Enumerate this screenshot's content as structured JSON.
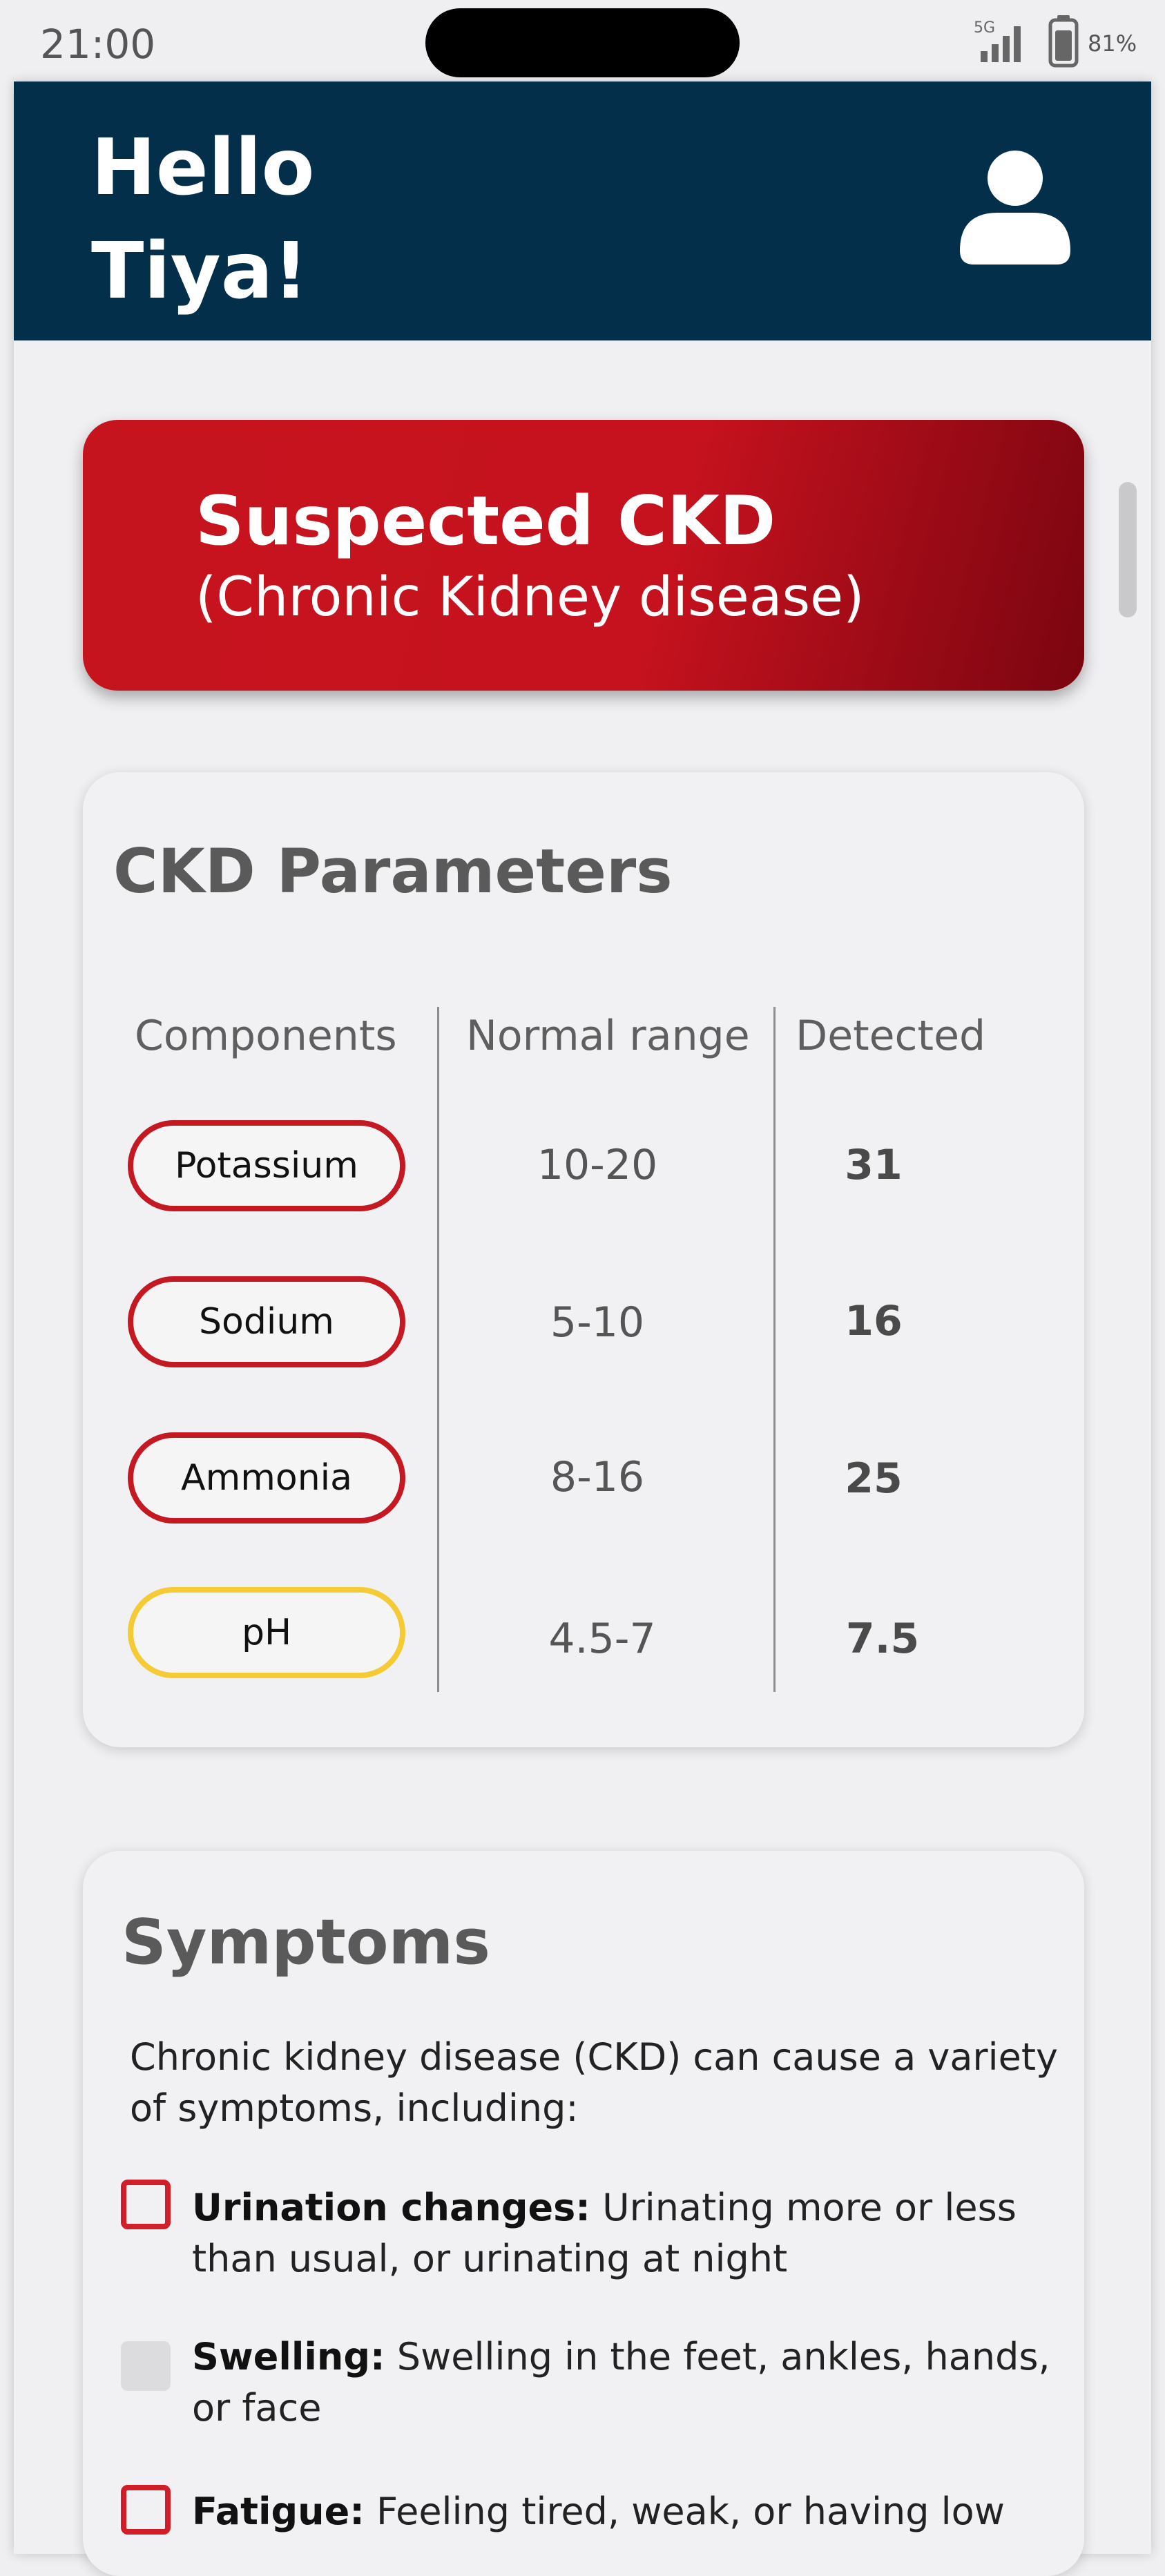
{
  "status_bar": {
    "time": "21:00",
    "network": "5G",
    "battery": "81%"
  },
  "header": {
    "greeting_line1": "Hello",
    "greeting_line2": "Tiya!"
  },
  "alert": {
    "title": "Suspected CKD",
    "subtitle": "(Chronic Kidney disease)"
  },
  "parameters": {
    "title": "CKD Parameters",
    "columns": [
      "Components",
      "Normal range",
      "Detected"
    ],
    "rows": [
      {
        "component": "Potassium",
        "normal_range": "10-20",
        "detected": "31",
        "status": "high"
      },
      {
        "component": "Sodium",
        "normal_range": "5-10",
        "detected": "16",
        "status": "high"
      },
      {
        "component": "Ammonia",
        "normal_range": "8-16",
        "detected": "25",
        "status": "high"
      },
      {
        "component": "pH",
        "normal_range": "4.5-7",
        "detected": "7.5",
        "status": "borderline"
      }
    ],
    "colors": {
      "high": "#c41822",
      "borderline": "#f4ca35"
    }
  },
  "symptoms": {
    "title": "Symptoms",
    "intro": "Chronic kidney disease (CKD) can cause a variety of symptoms, including:",
    "items": [
      {
        "name": "Urination changes:",
        "text": "Urinating more or less than usual, or urinating at night",
        "state": "flagged"
      },
      {
        "name": "Swelling:",
        "text": "Swelling in the feet, ankles, hands, or face",
        "state": "none"
      },
      {
        "name": "Fatigue:",
        "text": "Feeling tired, weak, or having low",
        "state": "flagged"
      }
    ]
  },
  "colors": {
    "header_bg": "#032f4a",
    "alert_red": "#c5121e",
    "background": "#efeff1"
  }
}
